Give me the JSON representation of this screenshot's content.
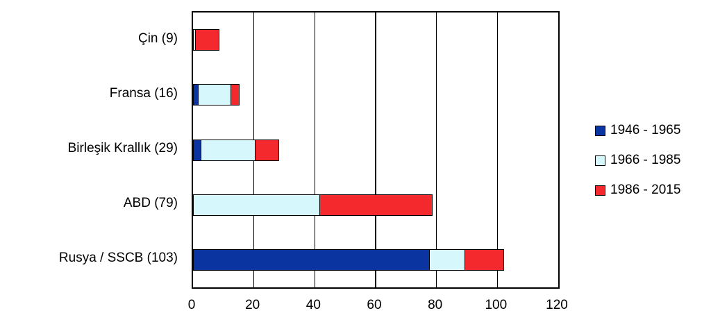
{
  "chart_data": {
    "type": "bar",
    "orientation": "horizontal",
    "stacked": true,
    "title": "",
    "categories": [
      "Çin (9)",
      "Fransa (16)",
      "Birleşik Krallık (29)",
      "ABD (79)",
      "Rusya / SSCB (103)"
    ],
    "category_totals": [
      9,
      16,
      29,
      79,
      103
    ],
    "series": [
      {
        "name": "1946 - 1965",
        "color": "#0A34A0",
        "values": [
          0,
          2,
          3,
          0,
          78
        ]
      },
      {
        "name": "1966 - 1985",
        "color": "#D6F7FB",
        "values": [
          1,
          11,
          18,
          42,
          12
        ]
      },
      {
        "name": "1986 - 2015",
        "color": "#F3292E",
        "values": [
          8,
          3,
          8,
          37,
          13
        ]
      }
    ],
    "xlim": [
      0,
      120
    ],
    "x_ticks": [
      0,
      20,
      40,
      60,
      80,
      100,
      120
    ],
    "grid": "vertical-gridlines",
    "legend_position": "right",
    "bar_border_color": "#000000",
    "axis_color": "#000000",
    "background_color": "#FFFFFF"
  }
}
